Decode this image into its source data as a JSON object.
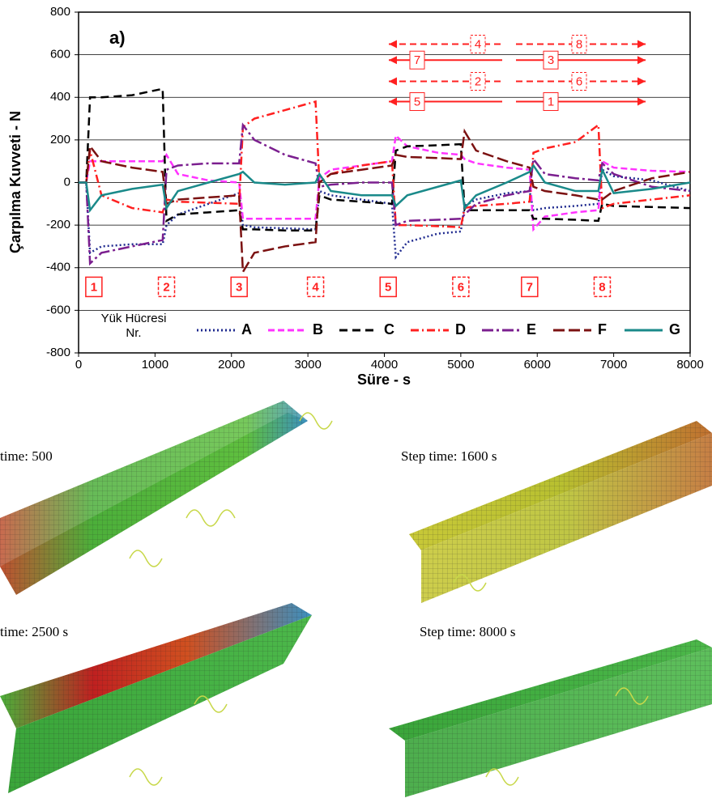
{
  "chart_data": {
    "type": "line",
    "title": "a)",
    "x_label": "Süre - s",
    "y_label": "Çarpılma Kuvveti - N",
    "legend_title": [
      "Yük Hücresi",
      "Nr."
    ],
    "xlim": [
      0,
      8000
    ],
    "xticks": [
      0,
      1000,
      2000,
      3000,
      4000,
      5000,
      6000,
      7000,
      8000
    ],
    "ylim": [
      -800,
      800
    ],
    "yticks": [
      -800,
      -600,
      -400,
      -200,
      0,
      200,
      400,
      600,
      800
    ],
    "grid": true,
    "x": [
      0,
      100,
      150,
      300,
      700,
      1100,
      1150,
      1300,
      1700,
      2100,
      2150,
      2300,
      2700,
      3100,
      3150,
      3300,
      3700,
      4100,
      4150,
      4300,
      4700,
      5000,
      5050,
      5200,
      5600,
      5900,
      5950,
      6100,
      6500,
      6800,
      6850,
      7000,
      7500,
      8000
    ],
    "series": [
      {
        "name": "A",
        "color": "#1f2a8f",
        "dash": "2 3",
        "values": [
          0,
          0,
          -330,
          -300,
          -290,
          -290,
          -200,
          -150,
          -100,
          -50,
          -200,
          -210,
          -215,
          -220,
          -40,
          -60,
          -80,
          -100,
          -350,
          -280,
          -240,
          -230,
          -110,
          -80,
          -50,
          -40,
          -130,
          -120,
          -110,
          -100,
          60,
          30,
          10,
          -40
        ]
      },
      {
        "name": "B",
        "color": "#ff33ff",
        "dash": "8 4",
        "values": [
          0,
          0,
          100,
          100,
          100,
          100,
          130,
          40,
          10,
          0,
          -170,
          -170,
          -170,
          -170,
          20,
          60,
          80,
          100,
          220,
          170,
          140,
          130,
          110,
          90,
          70,
          60,
          -220,
          -160,
          -140,
          -130,
          100,
          70,
          55,
          50
        ]
      },
      {
        "name": "C",
        "color": "#000000",
        "dash": "10 6",
        "values": [
          0,
          0,
          400,
          400,
          410,
          440,
          -180,
          -150,
          -140,
          -130,
          -220,
          -220,
          -225,
          -225,
          -60,
          -80,
          -90,
          -100,
          150,
          170,
          175,
          180,
          -130,
          -130,
          -130,
          -130,
          -170,
          -170,
          -175,
          -180,
          -100,
          -110,
          -115,
          -120
        ]
      },
      {
        "name": "D",
        "color": "#ff2020",
        "dash": "10 4 2 4",
        "values": [
          0,
          0,
          150,
          -60,
          -120,
          -140,
          -80,
          -90,
          -95,
          -100,
          260,
          300,
          340,
          380,
          0,
          40,
          80,
          100,
          -200,
          -200,
          -205,
          -210,
          -120,
          -110,
          -100,
          -90,
          140,
          160,
          190,
          270,
          -120,
          -100,
          -80,
          -60
        ]
      },
      {
        "name": "E",
        "color": "#7b1f8f",
        "dash": "14 4 3 4",
        "values": [
          0,
          0,
          -380,
          -330,
          -300,
          -270,
          60,
          80,
          90,
          90,
          270,
          200,
          130,
          90,
          -20,
          -10,
          0,
          0,
          -200,
          -180,
          -175,
          -170,
          -150,
          -100,
          -60,
          -40,
          110,
          40,
          20,
          10,
          90,
          40,
          -20,
          -40
        ]
      },
      {
        "name": "F",
        "color": "#7b1111",
        "dash": "14 5",
        "values": [
          0,
          0,
          170,
          100,
          70,
          50,
          -100,
          -80,
          -70,
          -60,
          -420,
          -330,
          -300,
          -280,
          0,
          40,
          60,
          80,
          130,
          120,
          115,
          110,
          240,
          150,
          100,
          70,
          -20,
          -40,
          -60,
          -80,
          -80,
          -40,
          20,
          50
        ]
      },
      {
        "name": "G",
        "color": "#1a8a8a",
        "dash": "",
        "values": [
          0,
          0,
          -130,
          -60,
          -30,
          -10,
          -120,
          -40,
          0,
          40,
          50,
          0,
          -10,
          0,
          40,
          -40,
          -60,
          -60,
          -110,
          -60,
          -20,
          10,
          -120,
          -60,
          0,
          50,
          80,
          0,
          -40,
          -40,
          60,
          -50,
          -30,
          0
        ]
      }
    ],
    "annotations": [
      "1",
      "2",
      "3",
      "4",
      "5",
      "6",
      "7",
      "8"
    ],
    "arrow_labels": [
      "4",
      "8",
      "7",
      "3",
      "2",
      "6",
      "5",
      "1"
    ]
  },
  "panels": [
    "time: 500",
    "Step time: 1600 s",
    "time: 2500 s",
    "Step time: 8000 s"
  ]
}
